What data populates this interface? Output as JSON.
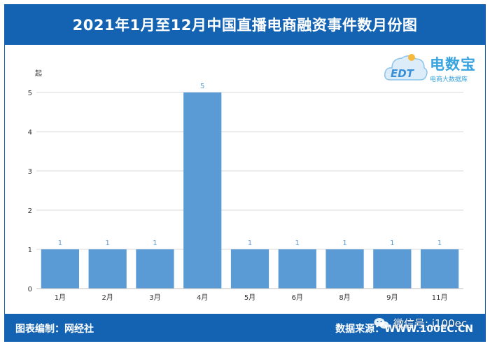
{
  "title": "2021年1月至12月中国直播电商融资事件数月份图",
  "footer": {
    "left": "图表编制：网经社",
    "right": "数据来源：WWW.100EC.CN"
  },
  "watermark": {
    "text": "微信号: i100ec"
  },
  "logo": {
    "brand": "电数宝",
    "mark": "EDT",
    "subtitle": "电商大数据库"
  },
  "colors": {
    "bar": "#5b9bd5",
    "label": "#5b9bd5",
    "header": "#1463b3",
    "grid": "#d9d9d9"
  },
  "chart_data": {
    "type": "bar",
    "title": "2021年1月至12月中国直播电商融资事件数月份图",
    "ylabel": "起",
    "xlabel": "",
    "categories": [
      "1月",
      "2月",
      "3月",
      "4月",
      "5月",
      "6月",
      "8月",
      "9月",
      "11月"
    ],
    "values": [
      1,
      1,
      1,
      5,
      1,
      1,
      1,
      1,
      1
    ],
    "ylim": [
      0,
      5
    ],
    "yticks": [
      0,
      1,
      2,
      3,
      4,
      5
    ],
    "grid": true,
    "data_labels": true
  }
}
